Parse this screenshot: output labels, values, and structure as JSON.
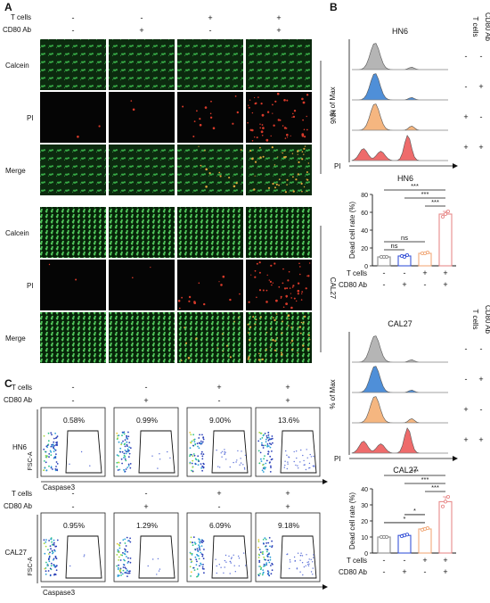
{
  "panels": {
    "a": "A",
    "b": "B",
    "c": "C"
  },
  "labels": {
    "t_cells": "T cells",
    "cd80_ab": "CD80 Ab",
    "plus": "+",
    "minus": "-",
    "calcein": "Calcein",
    "pi": "PI",
    "merge": "Merge",
    "hn6": "HN6",
    "cal27": "CAL27",
    "pct_max": "% of Max",
    "dead_rate": "Dead cell rate (%)",
    "fsc": "FSC-A",
    "caspase": "Caspase3",
    "ns": "ns",
    "one_star": "*",
    "three_stars": "***"
  },
  "conditions": [
    {
      "t_cells": "-",
      "cd80_ab": "-"
    },
    {
      "t_cells": "-",
      "cd80_ab": "+"
    },
    {
      "t_cells": "+",
      "cd80_ab": "-"
    },
    {
      "t_cells": "+",
      "cd80_ab": "+"
    }
  ],
  "flow_percent": {
    "hn6": [
      "0.58%",
      "0.99%",
      "9.00%",
      "13.6%"
    ],
    "cal27": [
      "0.95%",
      "1.29%",
      "6.09%",
      "9.18%"
    ]
  },
  "colors": {
    "gray": "#b5b5b5",
    "blue": "#4f8fd8",
    "orange": "#f5b680",
    "red": "#ee6b6b",
    "calcein": "#2f9e3c",
    "pi": "#d83a2a"
  },
  "chart_data": [
    {
      "type": "bar",
      "title": "HN6",
      "ylabel": "Dead cell rate (%)",
      "ylim": [
        0,
        80
      ],
      "yticks": [
        0,
        20,
        40,
        60,
        80
      ],
      "values": [
        10,
        11,
        14,
        58
      ],
      "points": [
        [
          10,
          10,
          10
        ],
        [
          11,
          10,
          12
        ],
        [
          14,
          14,
          15
        ],
        [
          55,
          58,
          61
        ]
      ],
      "errors": [
        0.6,
        1,
        0.8,
        3
      ],
      "colors": [
        "#8c8c8c",
        "#3a55d8",
        "#f1a97a",
        "#e88a8a"
      ],
      "significance": [
        {
          "from": 0,
          "to": 1,
          "label": "ns"
        },
        {
          "from": 0,
          "to": 2,
          "label": "ns"
        },
        {
          "from": 2,
          "to": 3,
          "label": "***"
        },
        {
          "from": 1,
          "to": 3,
          "label": "***"
        },
        {
          "from": 0,
          "to": 3,
          "label": "***"
        }
      ]
    },
    {
      "type": "bar",
      "title": "CAL27",
      "ylabel": "Dead cell rate (%)",
      "ylim": [
        0,
        40
      ],
      "yticks": [
        0,
        10,
        20,
        30,
        40
      ],
      "values": [
        10,
        11,
        15,
        32
      ],
      "points": [
        [
          10,
          10,
          10
        ],
        [
          10.5,
          11,
          11.5
        ],
        [
          14.5,
          15,
          15.5
        ],
        [
          29,
          32,
          35
        ]
      ],
      "errors": [
        0.3,
        0.6,
        0.6,
        3
      ],
      "colors": [
        "#8c8c8c",
        "#3a55d8",
        "#f1a97a",
        "#e88a8a"
      ],
      "significance": [
        {
          "from": 0,
          "to": 2,
          "label": "*"
        },
        {
          "from": 1,
          "to": 2,
          "label": "*"
        },
        {
          "from": 2,
          "to": 3,
          "label": "***"
        },
        {
          "from": 1,
          "to": 3,
          "label": "***"
        },
        {
          "from": 0,
          "to": 3,
          "label": "***"
        }
      ]
    }
  ]
}
